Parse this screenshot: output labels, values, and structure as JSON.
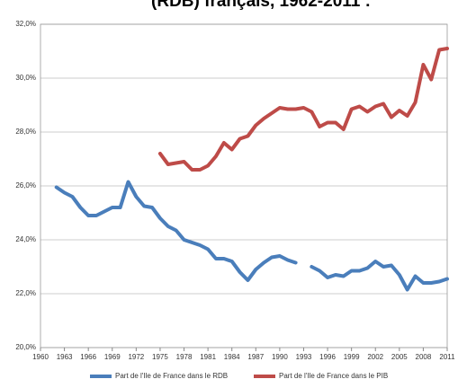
{
  "chart_data": {
    "type": "line",
    "title": "(RDB) français, 1962-2011 :",
    "x": [
      1962,
      1963,
      1964,
      1965,
      1966,
      1967,
      1968,
      1969,
      1970,
      1971,
      1972,
      1973,
      1974,
      1975,
      1976,
      1977,
      1978,
      1979,
      1980,
      1981,
      1982,
      1983,
      1984,
      1985,
      1986,
      1987,
      1988,
      1989,
      1990,
      1991,
      1992,
      1993,
      1994,
      1995,
      1996,
      1997,
      1998,
      1999,
      2000,
      2001,
      2002,
      2003,
      2004,
      2005,
      2006,
      2007,
      2008,
      2009,
      2010,
      2011
    ],
    "series": [
      {
        "name": "Part de l'Ile de France dans le RDB",
        "color": "#4a7ebb",
        "values": [
          25.95,
          25.75,
          25.6,
          25.2,
          24.9,
          24.9,
          25.05,
          25.2,
          25.2,
          26.15,
          25.6,
          25.25,
          25.2,
          24.8,
          24.5,
          24.35,
          24.0,
          23.9,
          23.8,
          23.65,
          23.3,
          23.3,
          23.2,
          22.8,
          22.5,
          22.9,
          23.15,
          23.35,
          23.4,
          23.25,
          23.15,
          null,
          23.0,
          22.85,
          22.6,
          22.7,
          22.65,
          22.85,
          22.85,
          22.95,
          23.2,
          23.0,
          23.05,
          22.7,
          22.15,
          22.65,
          22.4,
          22.4,
          22.45,
          22.55
        ]
      },
      {
        "name": "Part de l'Ile de France dans le PIB",
        "color": "#be4b48",
        "values": [
          null,
          null,
          null,
          null,
          null,
          null,
          null,
          null,
          null,
          null,
          null,
          null,
          null,
          27.2,
          26.8,
          26.85,
          26.9,
          26.6,
          26.6,
          26.75,
          27.1,
          27.6,
          27.35,
          27.75,
          27.85,
          28.25,
          28.5,
          28.7,
          28.9,
          28.85,
          28.85,
          28.9,
          28.75,
          28.2,
          28.35,
          28.35,
          28.1,
          28.85,
          28.95,
          28.75,
          28.95,
          29.05,
          28.55,
          28.8,
          28.6,
          29.1,
          30.5,
          29.95,
          31.05,
          31.1
        ]
      }
    ],
    "xlim": [
      1960,
      2011
    ],
    "xticks": [
      1960,
      1963,
      1966,
      1969,
      1972,
      1975,
      1978,
      1981,
      1984,
      1987,
      1990,
      1993,
      1996,
      1999,
      2002,
      2005,
      2008,
      2011
    ],
    "ylim": [
      20,
      32
    ],
    "yticks": [
      {
        "value": 20,
        "label": "20,0%"
      },
      {
        "value": 22,
        "label": "22,0%"
      },
      {
        "value": 24,
        "label": "24,0%"
      },
      {
        "value": 26,
        "label": "26,0%"
      },
      {
        "value": 28,
        "label": "28,0%"
      },
      {
        "value": 30,
        "label": "30,0%"
      },
      {
        "value": 32,
        "label": "32,0%"
      }
    ],
    "grid": true,
    "legend": "bottom"
  }
}
